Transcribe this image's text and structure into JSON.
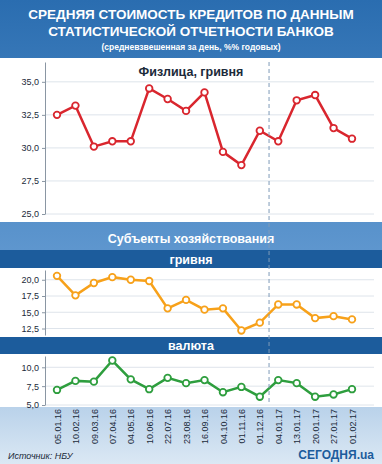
{
  "title": "СРЕДНЯЯ СТОИМОСТЬ КРЕДИТОВ ПО ДАННЫМ СТАТИСТИЧЕСКОЙ ОТЧЕТНОСТИ БАНКОВ",
  "subtitle": "(средневзвешенная за день, %% годовых)",
  "section_title": "Субъекты хозяйствования",
  "source": "Источник: НБУ",
  "logo": "СЕГОДНЯ.ua",
  "chart_data": [
    {
      "type": "line",
      "title": "Физлица, гривня",
      "categories": [
        "05.01.16",
        "10.02.16",
        "09.03.16",
        "07.04.16",
        "04.05.16",
        "10.06.16",
        "22.07.16",
        "23.08.16",
        "16.09.16",
        "04.10.16",
        "01.11.16",
        "01.12.16",
        "04.01.17",
        "13.01.17",
        "20.01.17",
        "27.01.17",
        "01.02.17"
      ],
      "series": [
        {
          "color": "#d9262e",
          "marker": "circle",
          "values": [
            32.5,
            33.2,
            30.1,
            30.5,
            30.5,
            34.5,
            33.7,
            32.8,
            34.2,
            29.7,
            28.7,
            31.3,
            30.5,
            33.6,
            34.0,
            31.5,
            30.7
          ]
        }
      ],
      "ylim": [
        25,
        36.5
      ],
      "yticks": [
        {
          "value": 25,
          "label": "25,0"
        },
        {
          "value": 27.5,
          "label": "27,5"
        },
        {
          "value": 30,
          "label": "30,0"
        },
        {
          "value": 32.5,
          "label": "32,5"
        },
        {
          "value": 35,
          "label": "35,0"
        }
      ],
      "grid": true,
      "tick_labels": "y"
    },
    {
      "type": "line",
      "title": "гривня",
      "categories": [
        "05.01.16",
        "10.02.16",
        "09.03.16",
        "07.04.16",
        "04.05.16",
        "10.06.16",
        "22.07.16",
        "23.08.16",
        "16.09.16",
        "04.10.16",
        "01.11.16",
        "01.12.16",
        "04.01.17",
        "13.01.17",
        "20.01.17",
        "27.01.17",
        "01.02.17"
      ],
      "series": [
        {
          "color": "#f7a11a",
          "marker": "circle",
          "values": [
            20.6,
            17.6,
            19.5,
            20.4,
            20.0,
            19.8,
            15.6,
            16.9,
            15.4,
            15.6,
            12.2,
            13.4,
            16.2,
            16.2,
            14.1,
            14.4,
            13.9
          ]
        }
      ],
      "ylim": [
        11.5,
        21.5
      ],
      "yticks": [
        {
          "value": 12.5,
          "label": "12,5"
        },
        {
          "value": 15,
          "label": "15,0"
        },
        {
          "value": 17.5,
          "label": "17,5"
        },
        {
          "value": 20,
          "label": "20,0"
        }
      ],
      "grid": true,
      "tick_labels": "y"
    },
    {
      "type": "line",
      "title": "валюта",
      "categories": [
        "05.01.16",
        "10.02.16",
        "09.03.16",
        "07.04.16",
        "04.05.16",
        "10.06.16",
        "22.07.16",
        "23.08.16",
        "16.09.16",
        "04.10.16",
        "01.11.16",
        "01.12.16",
        "04.01.17",
        "13.01.17",
        "20.01.17",
        "27.01.17",
        "01.02.17"
      ],
      "series": [
        {
          "color": "#2e9e3e",
          "marker": "circle",
          "values": [
            7.0,
            8.2,
            8.1,
            10.9,
            8.4,
            7.1,
            8.6,
            7.9,
            8.3,
            6.7,
            7.4,
            6.1,
            8.3,
            7.9,
            6.1,
            6.4,
            7.1
          ]
        }
      ],
      "ylim": [
        5,
        11.5
      ],
      "yticks": [
        {
          "value": 5,
          "label": "5,0"
        },
        {
          "value": 7.5,
          "label": "7,5"
        },
        {
          "value": 10,
          "label": "10,0"
        }
      ],
      "grid": true
    }
  ]
}
